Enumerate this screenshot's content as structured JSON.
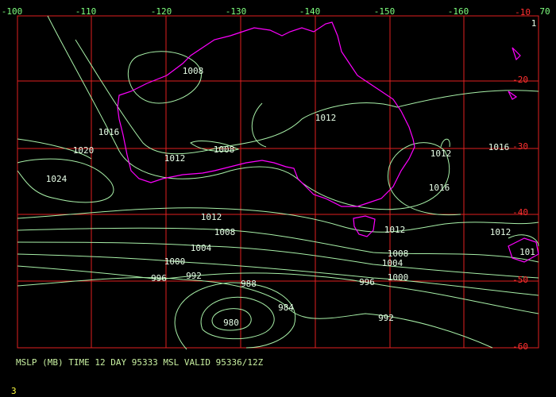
{
  "top_labels": [
    "-100",
    "-110",
    "-120",
    "-130",
    "-140",
    "-150",
    "-160",
    "70",
    "1"
  ],
  "lat_labels": [
    "-10",
    "-20",
    "-30",
    "-40",
    "-50",
    "-60"
  ],
  "contour_labels": [
    "1008",
    "1012",
    "1016",
    "1020",
    "1008",
    "1012",
    "1024",
    "1012",
    "1016",
    "1016",
    "1012",
    "1008",
    "1004",
    "1000",
    "996",
    "992",
    "988",
    "984",
    "980",
    "1012",
    "1012",
    "1008",
    "1004",
    "1000",
    "996",
    "992",
    "101"
  ],
  "caption": "MSLP (MB) TIME 12 DAY 95333 MSL VALID 95336/12Z",
  "footer": "3"
}
